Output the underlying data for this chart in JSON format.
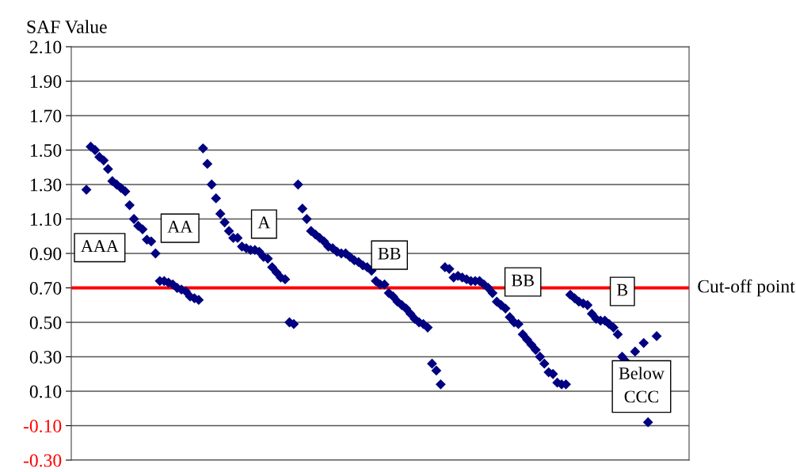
{
  "chart_data": {
    "type": "scatter",
    "ylabel": "SAF Value",
    "categories": [
      null,
      null,
      null,
      null,
      null,
      null,
      null,
      null,
      null,
      null,
      null,
      null,
      null,
      null,
      null,
      null,
      null,
      null,
      null,
      null,
      null,
      null,
      null,
      null,
      null,
      null,
      null,
      null,
      null,
      null,
      null,
      null,
      null,
      null,
      null,
      null,
      null,
      null,
      null,
      null,
      null,
      null,
      null,
      null,
      null,
      null,
      null,
      null,
      null,
      null,
      null,
      null,
      null,
      null,
      null,
      null,
      null,
      null,
      null,
      null,
      null,
      null,
      null,
      null,
      null,
      null,
      null,
      null,
      null,
      null,
      null,
      null,
      null,
      null,
      null,
      null,
      null,
      null,
      null,
      null,
      null,
      null,
      null,
      null,
      null,
      null,
      null,
      null,
      null,
      null,
      null,
      null,
      null,
      null,
      null,
      null,
      null,
      null,
      null,
      null,
      null,
      null,
      null,
      null,
      null,
      null,
      null,
      null,
      null,
      null,
      null,
      null,
      null,
      null,
      null,
      null,
      null,
      null,
      null,
      null,
      null,
      null,
      null,
      null,
      null,
      null,
      null,
      null,
      null,
      null,
      null,
      null,
      null,
      null,
      null,
      null,
      null,
      null,
      null,
      null,
      null,
      null,
      null
    ],
    "series": [
      {
        "color": "#000080",
        "values": [
          null,
          null,
          null,
          1.27,
          1.52,
          1.5,
          1.46,
          1.44,
          1.39,
          1.32,
          1.3,
          1.28,
          1.26,
          1.18,
          1.1,
          1.06,
          1.04,
          0.98,
          0.97,
          0.9,
          0.74,
          0.74,
          0.73,
          0.72,
          0.7,
          0.69,
          0.68,
          0.65,
          0.64,
          0.63,
          1.51,
          1.42,
          1.3,
          1.22,
          1.13,
          1.08,
          1.03,
          0.99,
          0.99,
          0.94,
          0.93,
          0.92,
          0.92,
          0.91,
          0.88,
          0.87,
          0.82,
          0.79,
          0.76,
          0.75,
          0.5,
          0.49,
          1.3,
          1.16,
          1.1,
          1.03,
          1.01,
          0.99,
          0.97,
          0.94,
          0.93,
          0.91,
          0.9,
          0.9,
          0.88,
          0.86,
          0.85,
          0.83,
          0.82,
          0.8,
          0.74,
          0.72,
          0.72,
          0.67,
          0.65,
          0.62,
          0.6,
          0.58,
          0.55,
          0.52,
          0.5,
          0.49,
          0.47,
          0.26,
          0.22,
          0.14,
          0.82,
          0.81,
          0.76,
          0.77,
          0.76,
          0.75,
          0.74,
          0.74,
          0.74,
          0.72,
          0.7,
          0.67,
          0.62,
          0.6,
          0.58,
          0.53,
          0.5,
          0.49,
          0.43,
          0.4,
          0.37,
          0.34,
          0.3,
          0.26,
          0.21,
          0.2,
          0.15,
          0.14,
          0.14,
          0.66,
          0.64,
          0.62,
          0.61,
          0.6,
          0.55,
          0.52,
          0.51,
          0.51,
          0.49,
          0.47,
          0.43,
          0.3,
          0.27,
          null,
          0.33,
          null,
          0.38,
          -0.08,
          null,
          0.42,
          null,
          null,
          null,
          null,
          null,
          null,
          null
        ]
      }
    ],
    "ylim": [
      -0.3,
      2.1
    ],
    "yticks": [
      {
        "value": -0.3,
        "label": "-0.30"
      },
      {
        "value": -0.1,
        "label": "-0.10"
      },
      {
        "value": 0.1,
        "label": "0.10"
      },
      {
        "value": 0.3,
        "label": "0.30"
      },
      {
        "value": 0.5,
        "label": "0.50"
      },
      {
        "value": 0.7,
        "label": "0.70"
      },
      {
        "value": 0.9,
        "label": "0.90"
      },
      {
        "value": 1.1,
        "label": "1.10"
      },
      {
        "value": 1.3,
        "label": "1.30"
      },
      {
        "value": 1.5,
        "label": "1.50"
      },
      {
        "value": 1.7,
        "label": "1.70"
      },
      {
        "value": 1.9,
        "label": "1.90"
      },
      {
        "value": 2.1,
        "label": "2.10"
      }
    ],
    "grid": "y",
    "marker": "diamond",
    "ref_lines": [
      {
        "axis": "y",
        "value": 0.7,
        "label": "Cut-off point",
        "color": "#ff0000"
      }
    ],
    "annotations": [
      "AAA",
      "AA",
      "A",
      "BB",
      "BB",
      "B",
      "Below\nCCC"
    ]
  }
}
